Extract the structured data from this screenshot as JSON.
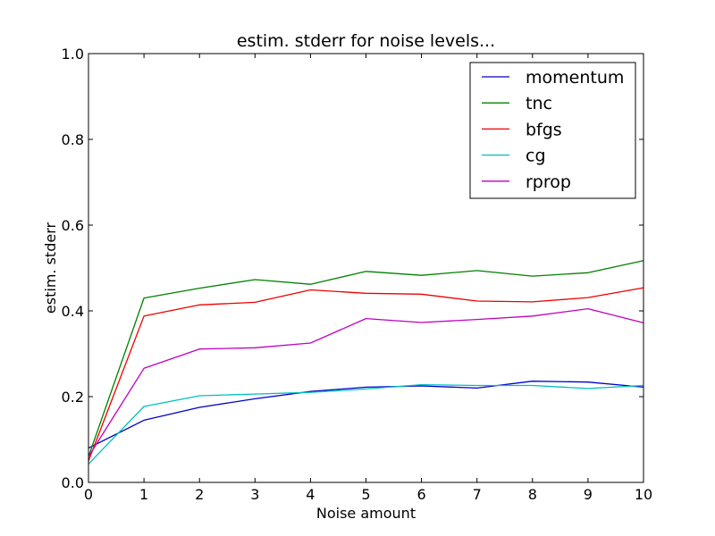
{
  "chart_data": {
    "type": "line",
    "title": "estim. stderr for noise levels...",
    "xlabel": "Noise amount",
    "ylabel": "estim. stderr",
    "xlim": [
      0,
      10
    ],
    "ylim": [
      0,
      1.0
    ],
    "x": [
      0,
      1,
      2,
      3,
      4,
      5,
      6,
      7,
      8,
      9,
      10
    ],
    "xticks": [
      "0",
      "1",
      "2",
      "3",
      "4",
      "5",
      "6",
      "7",
      "8",
      "9",
      "10"
    ],
    "yticks": [
      "0.0",
      "0.2",
      "0.4",
      "0.6",
      "0.8",
      "1.0"
    ],
    "grid": false,
    "legend_position": "top-right",
    "series": [
      {
        "name": "momentum",
        "color": "#0000cc",
        "values": [
          0.08,
          0.145,
          0.175,
          0.195,
          0.212,
          0.222,
          0.225,
          0.22,
          0.236,
          0.234,
          0.222
        ]
      },
      {
        "name": "tnc",
        "color": "#008000",
        "values": [
          0.06,
          0.43,
          0.453,
          0.473,
          0.462,
          0.492,
          0.483,
          0.494,
          0.481,
          0.489,
          0.517
        ]
      },
      {
        "name": "bfgs",
        "color": "#ee0000",
        "values": [
          0.05,
          0.388,
          0.414,
          0.42,
          0.449,
          0.441,
          0.439,
          0.423,
          0.421,
          0.431,
          0.454
        ]
      },
      {
        "name": "cg",
        "color": "#00bfbf",
        "values": [
          0.043,
          0.177,
          0.202,
          0.206,
          0.21,
          0.218,
          0.228,
          0.226,
          0.226,
          0.219,
          0.226
        ]
      },
      {
        "name": "rprop",
        "color": "#bf00bf",
        "values": [
          0.06,
          0.266,
          0.311,
          0.314,
          0.325,
          0.382,
          0.373,
          0.38,
          0.388,
          0.405,
          0.372
        ]
      }
    ]
  }
}
